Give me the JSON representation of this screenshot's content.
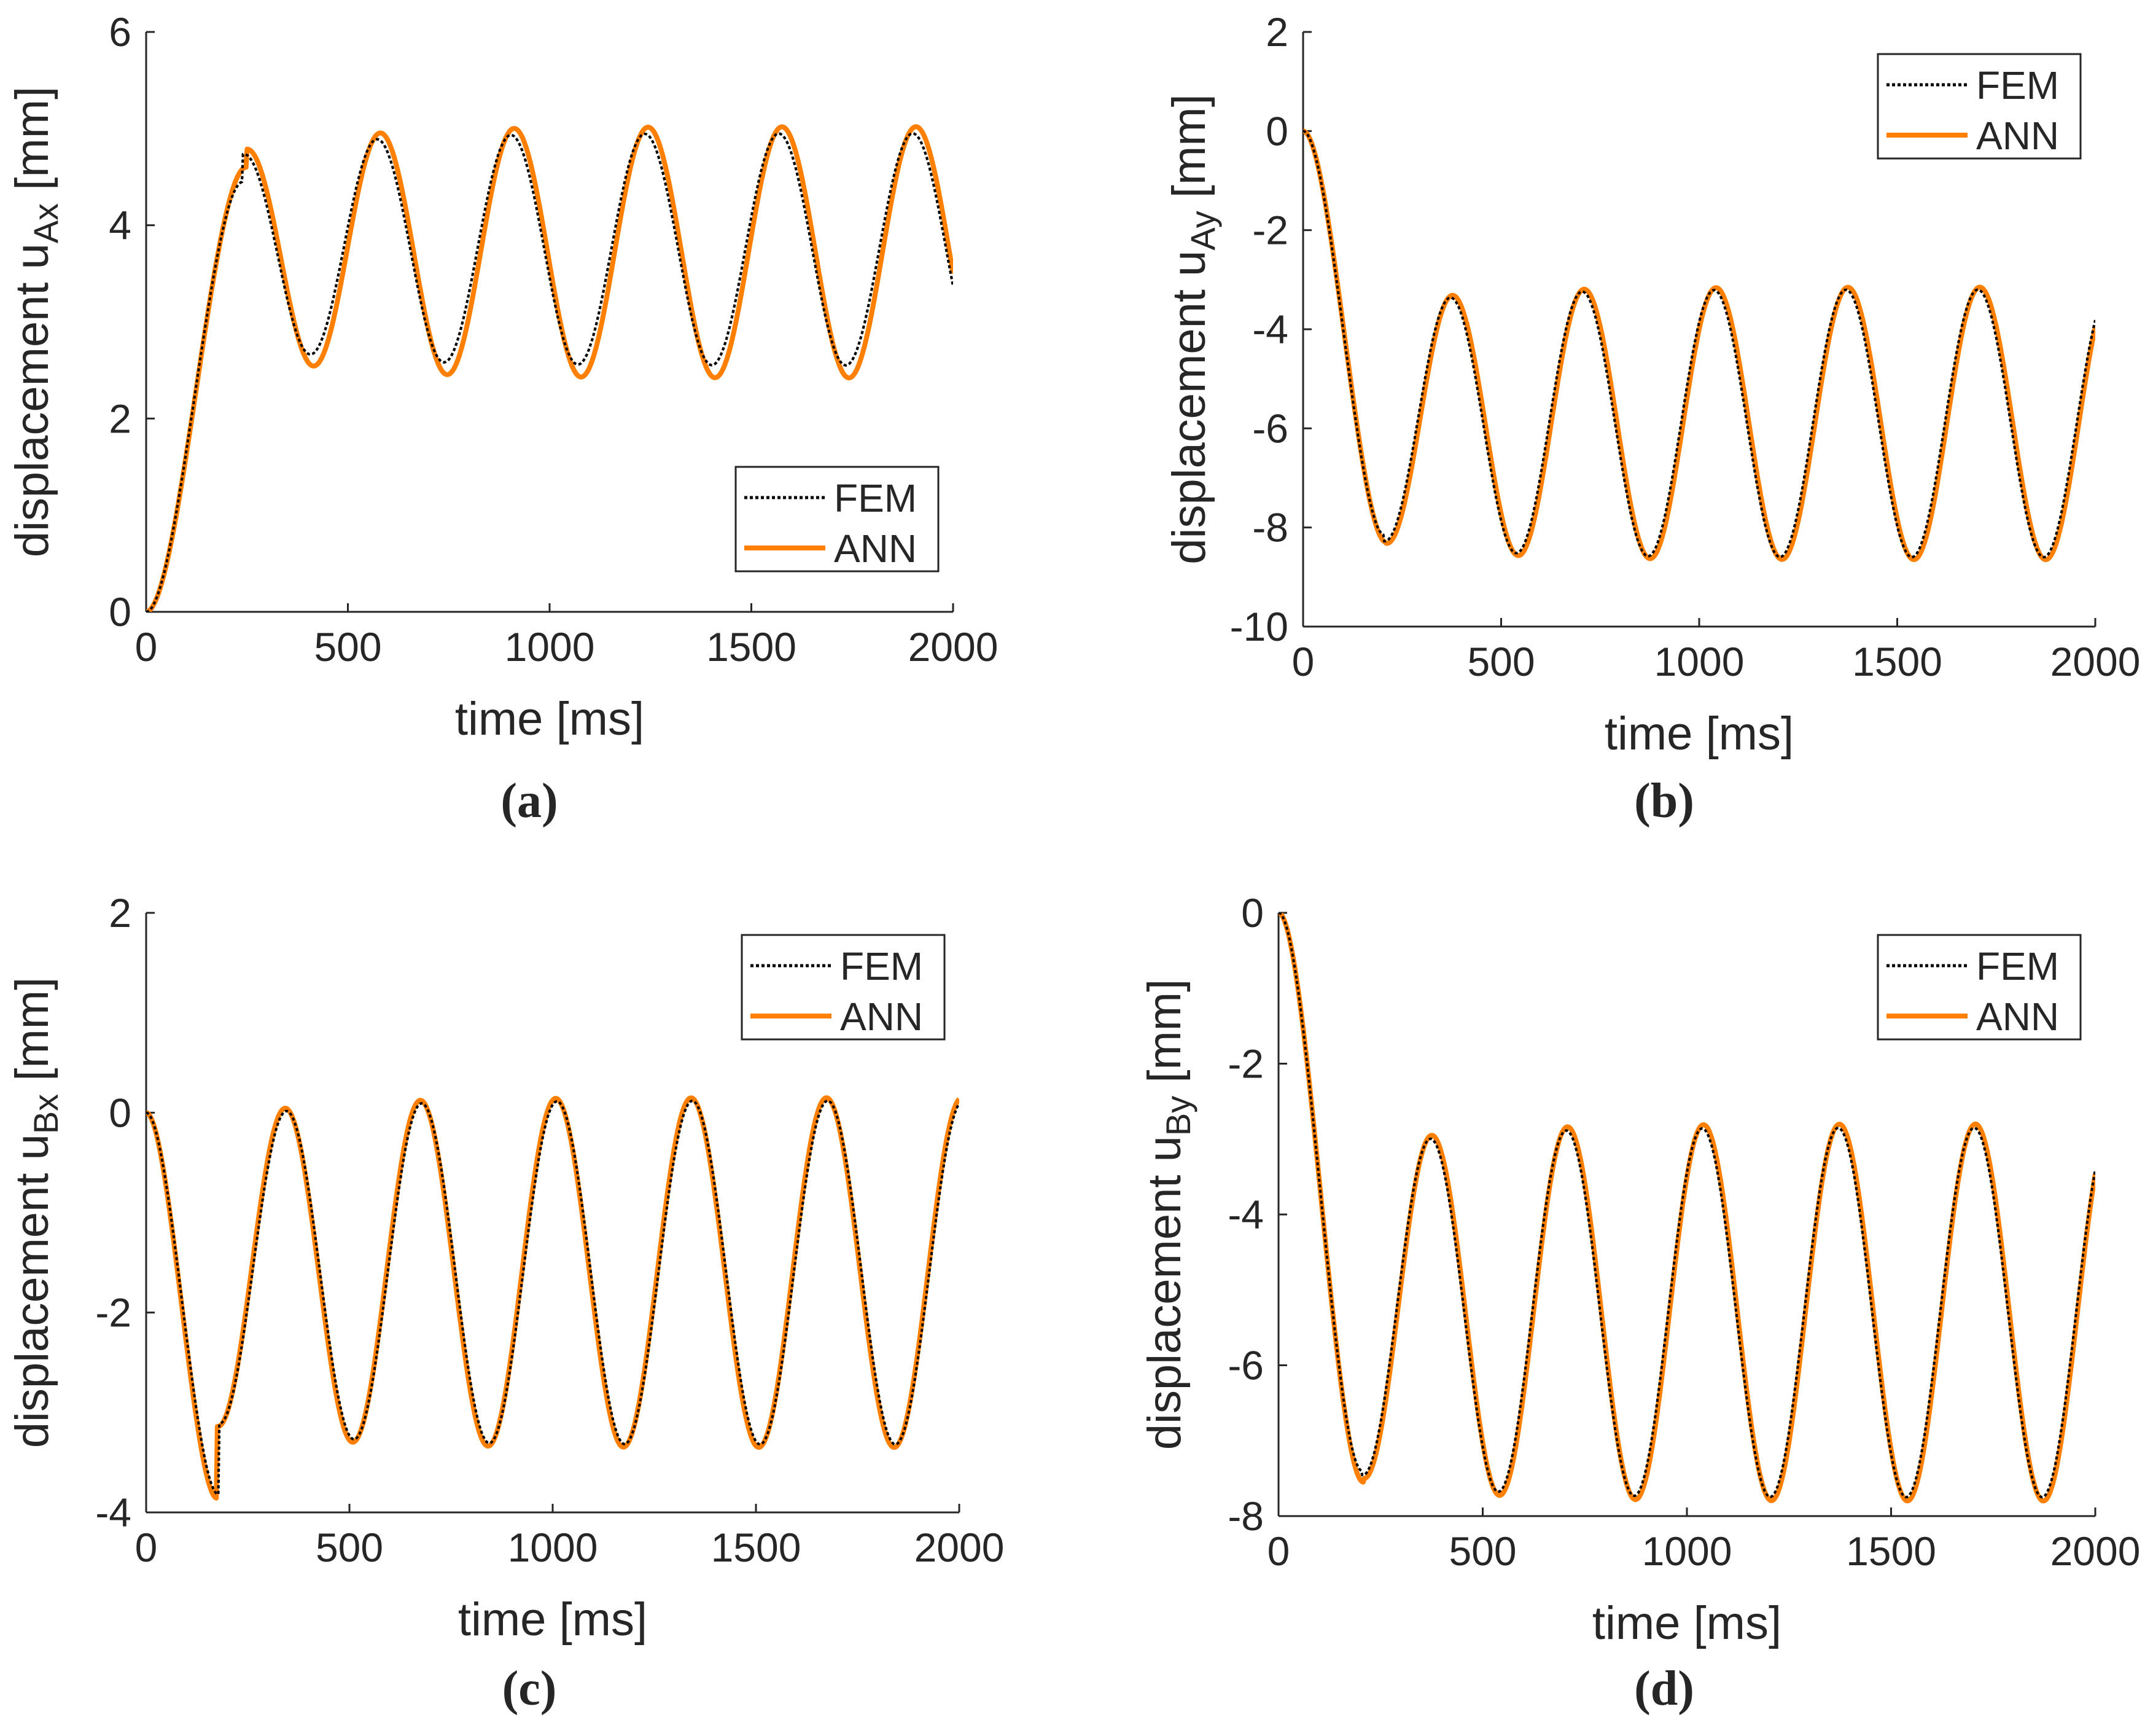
{
  "figure": {
    "legend_entries": [
      "FEM",
      "ANN"
    ],
    "colors": {
      "fem": "#000000",
      "ann": "#ff8000",
      "axis": "#262626"
    }
  },
  "chart_data": [
    {
      "panel": "a",
      "caption": "(a)",
      "type": "line",
      "title": "",
      "xlabel": "time [ms]",
      "ylabel_prefix": "displacement u",
      "ylabel_sub": "Ax",
      "ylabel_suffix": " [mm]",
      "xlim": [
        0,
        2000
      ],
      "ylim": [
        0,
        6
      ],
      "xticks": [
        0,
        500,
        1000,
        1500,
        2000
      ],
      "yticks": [
        0,
        2,
        4,
        6
      ],
      "grid": false,
      "legend_position": "lower-right",
      "series": [
        {
          "name": "FEM",
          "style": "dotted",
          "color": "#000000",
          "signal": {
            "start": 0,
            "settle_ms": 260,
            "center": 3.75,
            "amplitude": 1.2,
            "period_ms": 332,
            "first_peak_ms": 240,
            "first_peak": 4.45,
            "first_trough": 2.48,
            "end_value": 3.55
          }
        },
        {
          "name": "ANN",
          "style": "solid",
          "color": "#ff8000",
          "signal": {
            "start": 0,
            "settle_ms": 260,
            "center": 3.72,
            "amplitude": 1.3,
            "period_ms": 332,
            "first_peak_ms": 248,
            "first_peak": 4.6,
            "first_trough": 2.35,
            "end_value": 3.5
          }
        }
      ]
    },
    {
      "panel": "b",
      "caption": "(b)",
      "type": "line",
      "title": "",
      "xlabel": "time [ms]",
      "ylabel_prefix": "displacement u",
      "ylabel_sub": "Ay",
      "ylabel_suffix": " [mm]",
      "xlim": [
        0,
        2000
      ],
      "ylim": [
        -10,
        2
      ],
      "xticks": [
        0,
        500,
        1000,
        1500,
        2000
      ],
      "yticks": [
        -10,
        -8,
        -6,
        -4,
        -2,
        0,
        2
      ],
      "grid": false,
      "legend_position": "top-right",
      "series": [
        {
          "name": "FEM",
          "style": "dotted",
          "color": "#000000",
          "signal": {
            "start": 0,
            "settle_ms": 40,
            "center": -5.9,
            "amplitude": 2.7,
            "period_ms": 333,
            "first_trough_ms": 205,
            "first_trough": -8.15,
            "first_peak": -3.15,
            "end_value": -4.3
          }
        },
        {
          "name": "ANN",
          "style": "solid",
          "color": "#ff8000",
          "signal": {
            "start": 0,
            "settle_ms": 40,
            "center": -5.9,
            "amplitude": 2.75,
            "period_ms": 333,
            "first_trough_ms": 210,
            "first_trough": -8.3,
            "first_peak": -3.1,
            "end_value": -4.2
          }
        }
      ]
    },
    {
      "panel": "c",
      "caption": "(c)",
      "type": "line",
      "title": "",
      "xlabel": "time [ms]",
      "ylabel_prefix": "displacement u",
      "ylabel_sub": "Bx",
      "ylabel_suffix": " [mm]",
      "xlim": [
        0,
        2000
      ],
      "ylim": [
        -4,
        2
      ],
      "xticks": [
        0,
        500,
        1000,
        1500,
        2000
      ],
      "yticks": [
        -4,
        -2,
        0,
        2
      ],
      "grid": false,
      "legend_position": "top-right",
      "series": [
        {
          "name": "FEM",
          "style": "dotted",
          "color": "#000000",
          "signal": {
            "start": 0,
            "settle_ms": 30,
            "center": -1.6,
            "amplitude": 1.72,
            "period_ms": 333,
            "first_trough_ms": 178,
            "first_trough": -3.82,
            "first_peak": 0.1,
            "end_value": -0.05
          }
        },
        {
          "name": "ANN",
          "style": "solid",
          "color": "#ff8000",
          "signal": {
            "start": 0,
            "settle_ms": 30,
            "center": -1.6,
            "amplitude": 1.75,
            "period_ms": 333,
            "first_trough_ms": 175,
            "first_trough": -3.86,
            "first_peak": 0.12,
            "end_value": 0.0
          }
        }
      ]
    },
    {
      "panel": "d",
      "caption": "(d)",
      "type": "line",
      "title": "",
      "xlabel": "time [ms]",
      "ylabel_prefix": "displacement u",
      "ylabel_sub": "By",
      "ylabel_suffix": " [mm]",
      "xlim": [
        0,
        2000
      ],
      "ylim": [
        -8,
        0
      ],
      "xticks": [
        0,
        500,
        1000,
        1500,
        2000
      ],
      "yticks": [
        -8,
        -6,
        -4,
        -2,
        0
      ],
      "grid": false,
      "legend_position": "top-right",
      "series": [
        {
          "name": "FEM",
          "style": "dotted",
          "color": "#000000",
          "signal": {
            "start": 0,
            "settle_ms": 40,
            "center": -5.3,
            "amplitude": 2.45,
            "period_ms": 333,
            "first_trough_ms": 205,
            "first_trough": -7.4,
            "first_peak": -2.8,
            "end_value": -3.8
          }
        },
        {
          "name": "ANN",
          "style": "solid",
          "color": "#ff8000",
          "signal": {
            "start": 0,
            "settle_ms": 40,
            "center": -5.3,
            "amplitude": 2.5,
            "period_ms": 333,
            "first_trough_ms": 208,
            "first_trough": -7.55,
            "first_peak": -2.75,
            "end_value": -3.7
          }
        }
      ]
    }
  ]
}
